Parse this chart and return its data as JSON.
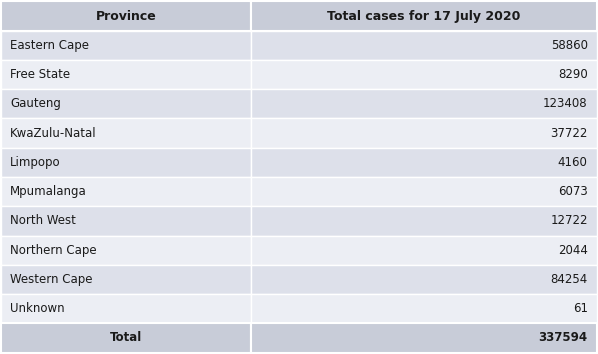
{
  "col_headers": [
    "Province",
    "Total cases for 17 July 2020"
  ],
  "rows": [
    [
      "Eastern Cape",
      "58860"
    ],
    [
      "Free State",
      "8290"
    ],
    [
      "Gauteng",
      "123408"
    ],
    [
      "KwaZulu-Natal",
      "37722"
    ],
    [
      "Limpopo",
      "4160"
    ],
    [
      "Mpumalanga",
      "6073"
    ],
    [
      "North West",
      "12722"
    ],
    [
      "Northern Cape",
      "2044"
    ],
    [
      "Western Cape",
      "84254"
    ],
    [
      "Unknown",
      "61"
    ]
  ],
  "total_row": [
    "Total",
    "337594"
  ],
  "header_bg": "#c8ccd8",
  "row_bg_odd": "#dde0ea",
  "row_bg_even": "#eceef4",
  "total_bg": "#c8ccd8",
  "border_color": "#ffffff",
  "text_color": "#1a1a1a",
  "header_fontsize": 9,
  "row_fontsize": 8.5,
  "col_split": 0.42,
  "fig_bg": "#ffffff"
}
